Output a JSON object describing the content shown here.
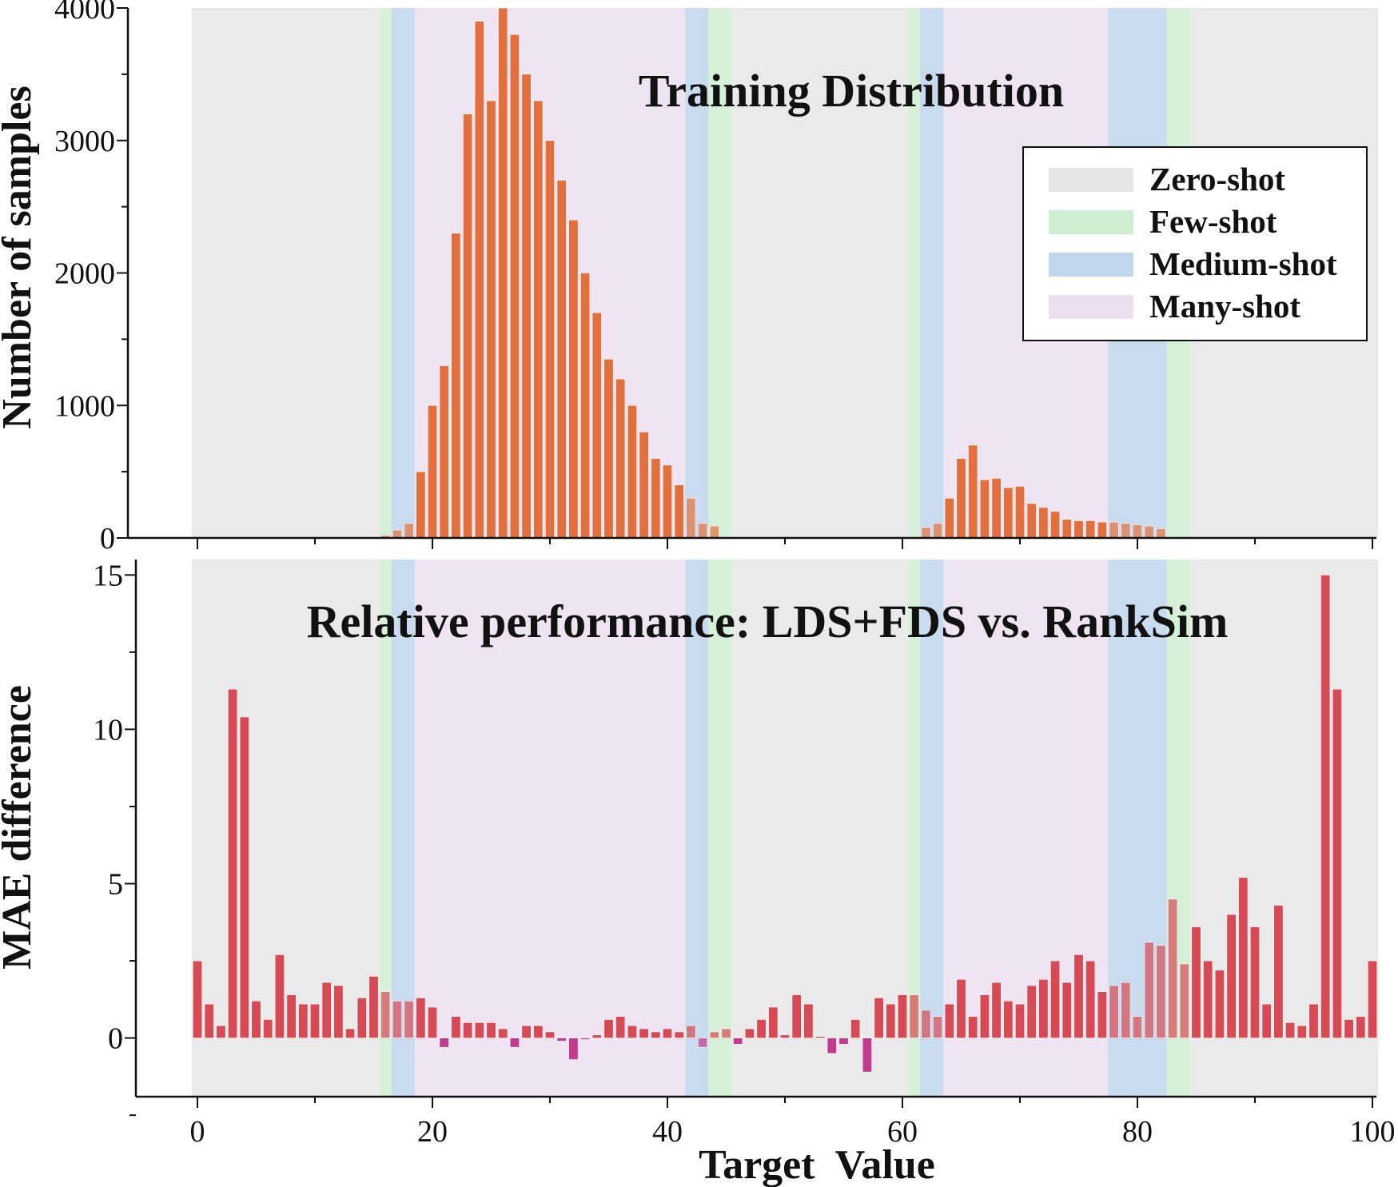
{
  "colors": {
    "zero_shot": "#e6e6e6",
    "few_shot": "#cfeed1",
    "medium_shot": "#bfd6ec",
    "many_shot": "#ecdff0",
    "top_bar": "#e2703f",
    "bottom_bar_pos": "#d64a55",
    "bottom_bar_neg": "#c23a8c"
  },
  "legend": [
    {
      "label": "Zero-shot",
      "color_key": "zero_shot"
    },
    {
      "label": "Few-shot",
      "color_key": "few_shot"
    },
    {
      "label": "Medium-shot",
      "color_key": "medium_shot"
    },
    {
      "label": "Many-shot",
      "color_key": "many_shot"
    }
  ],
  "chart_data": [
    {
      "type": "bar",
      "title": "Training Distribution",
      "xlabel": "",
      "ylabel": "Number of samples",
      "xlim": [
        -0.5,
        100.5
      ],
      "ylim": [
        0,
        4000
      ],
      "yticks": [
        0,
        1000,
        2000,
        3000,
        4000
      ],
      "xticks": [
        0,
        20,
        40,
        60,
        80,
        100
      ],
      "shot_regions": [
        {
          "from": -0.5,
          "to": 15.5,
          "region": "zero_shot"
        },
        {
          "from": 15.5,
          "to": 16.5,
          "region": "few_shot"
        },
        {
          "from": 16.5,
          "to": 18.5,
          "region": "medium_shot"
        },
        {
          "from": 18.5,
          "to": 41.5,
          "region": "many_shot"
        },
        {
          "from": 41.5,
          "to": 43.5,
          "region": "medium_shot"
        },
        {
          "from": 43.5,
          "to": 45.5,
          "region": "few_shot"
        },
        {
          "from": 45.5,
          "to": 60.5,
          "region": "zero_shot"
        },
        {
          "from": 60.5,
          "to": 61.5,
          "region": "few_shot"
        },
        {
          "from": 61.5,
          "to": 63.5,
          "region": "medium_shot"
        },
        {
          "from": 63.5,
          "to": 77.5,
          "region": "many_shot"
        },
        {
          "from": 77.5,
          "to": 82.5,
          "region": "medium_shot"
        },
        {
          "from": 82.5,
          "to": 84.5,
          "region": "few_shot"
        },
        {
          "from": 84.5,
          "to": 100.5,
          "region": "zero_shot"
        }
      ],
      "x": [
        0,
        1,
        2,
        3,
        4,
        5,
        6,
        7,
        8,
        9,
        10,
        11,
        12,
        13,
        14,
        15,
        16,
        17,
        18,
        19,
        20,
        21,
        22,
        23,
        24,
        25,
        26,
        27,
        28,
        29,
        30,
        31,
        32,
        33,
        34,
        35,
        36,
        37,
        38,
        39,
        40,
        41,
        42,
        43,
        44,
        45,
        46,
        47,
        48,
        49,
        50,
        51,
        52,
        53,
        54,
        55,
        56,
        57,
        58,
        59,
        60,
        61,
        62,
        63,
        64,
        65,
        66,
        67,
        68,
        69,
        70,
        71,
        72,
        73,
        74,
        75,
        76,
        77,
        78,
        79,
        80,
        81,
        82,
        83,
        84,
        85,
        86,
        87,
        88,
        89,
        90,
        91,
        92,
        93,
        94,
        95,
        96,
        97,
        98,
        99,
        100
      ],
      "values": [
        0,
        0,
        0,
        0,
        0,
        0,
        0,
        0,
        0,
        0,
        0,
        0,
        0,
        0,
        0,
        5,
        20,
        60,
        110,
        500,
        1000,
        1300,
        2300,
        3200,
        3900,
        3300,
        4000,
        3800,
        3500,
        3300,
        3000,
        2700,
        2400,
        2000,
        1700,
        1350,
        1200,
        1000,
        800,
        600,
        550,
        400,
        300,
        110,
        90,
        0,
        0,
        0,
        0,
        0,
        0,
        0,
        0,
        0,
        0,
        0,
        0,
        0,
        0,
        0,
        0,
        5,
        80,
        110,
        300,
        600,
        700,
        440,
        450,
        380,
        390,
        260,
        230,
        200,
        140,
        130,
        130,
        120,
        120,
        110,
        100,
        90,
        70,
        10,
        5,
        0,
        0,
        0,
        0,
        0,
        0,
        0,
        0,
        0,
        0,
        0,
        0,
        0,
        0,
        0,
        0
      ]
    },
    {
      "type": "bar",
      "title": "Relative performance: LDS+FDS vs. RankSim",
      "xlabel": "Target  Value",
      "ylabel": "MAE difference",
      "xlim": [
        -0.5,
        100.5
      ],
      "ylim": [
        -1.9,
        15.5
      ],
      "yticks": [
        0,
        5,
        10,
        15
      ],
      "xticks": [
        0,
        20,
        40,
        60,
        80,
        100
      ],
      "shot_regions": [
        {
          "from": -0.5,
          "to": 15.5,
          "region": "zero_shot"
        },
        {
          "from": 15.5,
          "to": 16.5,
          "region": "few_shot"
        },
        {
          "from": 16.5,
          "to": 18.5,
          "region": "medium_shot"
        },
        {
          "from": 18.5,
          "to": 41.5,
          "region": "many_shot"
        },
        {
          "from": 41.5,
          "to": 43.5,
          "region": "medium_shot"
        },
        {
          "from": 43.5,
          "to": 45.5,
          "region": "few_shot"
        },
        {
          "from": 45.5,
          "to": 60.5,
          "region": "zero_shot"
        },
        {
          "from": 60.5,
          "to": 61.5,
          "region": "few_shot"
        },
        {
          "from": 61.5,
          "to": 63.5,
          "region": "medium_shot"
        },
        {
          "from": 63.5,
          "to": 77.5,
          "region": "many_shot"
        },
        {
          "from": 77.5,
          "to": 82.5,
          "region": "medium_shot"
        },
        {
          "from": 82.5,
          "to": 84.5,
          "region": "few_shot"
        },
        {
          "from": 84.5,
          "to": 100.5,
          "region": "zero_shot"
        }
      ],
      "x": [
        0,
        1,
        2,
        3,
        4,
        5,
        6,
        7,
        8,
        9,
        10,
        11,
        12,
        13,
        14,
        15,
        16,
        17,
        18,
        19,
        20,
        21,
        22,
        23,
        24,
        25,
        26,
        27,
        28,
        29,
        30,
        31,
        32,
        33,
        34,
        35,
        36,
        37,
        38,
        39,
        40,
        41,
        42,
        43,
        44,
        45,
        46,
        47,
        48,
        49,
        50,
        51,
        52,
        53,
        54,
        55,
        56,
        57,
        58,
        59,
        60,
        61,
        62,
        63,
        64,
        65,
        66,
        67,
        68,
        69,
        70,
        71,
        72,
        73,
        74,
        75,
        76,
        77,
        78,
        79,
        80,
        81,
        82,
        83,
        84,
        85,
        86,
        87,
        88,
        89,
        90,
        91,
        92,
        93,
        94,
        95,
        96,
        97,
        98,
        99,
        100
      ],
      "values": [
        2.5,
        1.1,
        0.4,
        11.3,
        10.4,
        1.2,
        0.6,
        2.7,
        1.4,
        1.1,
        1.1,
        1.8,
        1.7,
        0.3,
        1.3,
        2.0,
        1.5,
        1.2,
        1.2,
        1.3,
        1.0,
        -0.3,
        0.7,
        0.5,
        0.5,
        0.5,
        0.3,
        -0.3,
        0.4,
        0.4,
        0.2,
        -0.1,
        -0.7,
        -0.05,
        0.1,
        0.6,
        0.7,
        0.4,
        0.3,
        0.2,
        0.3,
        0.2,
        0.4,
        -0.3,
        0.2,
        0.3,
        -0.2,
        0.3,
        0.6,
        1.0,
        0.1,
        1.4,
        1.1,
        0.05,
        -0.5,
        -0.2,
        0.6,
        -1.1,
        1.3,
        1.1,
        1.4,
        1.4,
        0.9,
        0.7,
        1.1,
        1.9,
        0.7,
        1.4,
        1.8,
        1.2,
        1.1,
        1.7,
        1.9,
        2.5,
        1.8,
        2.7,
        2.5,
        1.5,
        1.7,
        1.8,
        0.7,
        3.1,
        3.0,
        4.5,
        2.4,
        3.6,
        2.5,
        2.2,
        4.0,
        5.2,
        3.6,
        1.1,
        4.3,
        0.5,
        0.4,
        1.1,
        15.0,
        11.3,
        0.6,
        0.7,
        2.5
      ]
    }
  ]
}
